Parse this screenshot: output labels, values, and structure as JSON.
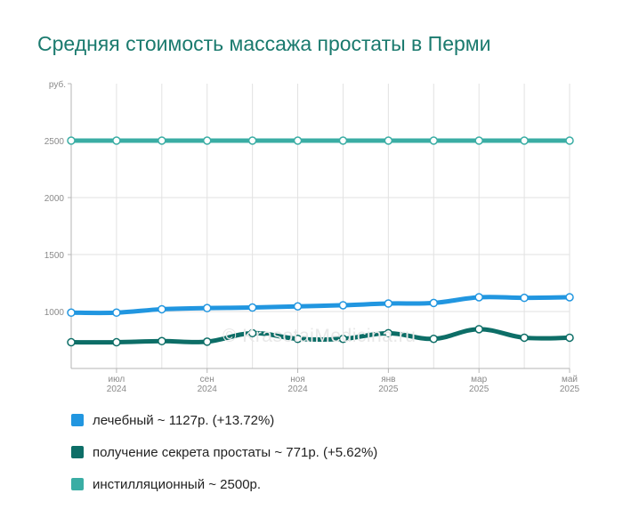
{
  "title": "Средняя стоимость массажа простаты в Перми",
  "watermark": "© KrasotaiMedicina.ru",
  "chart_data": {
    "type": "line",
    "y_unit": "руб.",
    "ylim": [
      0,
      2700
    ],
    "yticks": [
      {
        "value": 1000,
        "label": "1000"
      },
      {
        "value": 1500,
        "label": "1500"
      },
      {
        "value": 2000,
        "label": "2000"
      },
      {
        "value": 2500,
        "label": "2500"
      }
    ],
    "x_count": 12,
    "xticks": [
      {
        "index": 1,
        "label": [
          "июл",
          "2024"
        ]
      },
      {
        "index": 3,
        "label": [
          "сен",
          "2024"
        ]
      },
      {
        "index": 5,
        "label": [
          "ноя",
          "2024"
        ]
      },
      {
        "index": 7,
        "label": [
          "янв",
          "2025"
        ]
      },
      {
        "index": 9,
        "label": [
          "мар",
          "2025"
        ]
      },
      {
        "index": 11,
        "label": [
          "май",
          "2025"
        ]
      }
    ],
    "grid": true,
    "legend_position": "bottom-left",
    "series": [
      {
        "name": "лечебный",
        "color": "#2196e0",
        "values": [
          990,
          990,
          1020,
          1030,
          1035,
          1045,
          1055,
          1070,
          1075,
          1125,
          1120,
          1125
        ]
      },
      {
        "name": "получение секрета простаты",
        "color": "#0d6e67",
        "values": [
          730,
          730,
          740,
          735,
          810,
          760,
          760,
          810,
          760,
          845,
          770,
          770
        ]
      },
      {
        "name": "инстилляционный",
        "color": "#3aada4",
        "values": [
          2500,
          2500,
          2500,
          2500,
          2500,
          2500,
          2500,
          2500,
          2500,
          2500,
          2500,
          2500
        ]
      }
    ]
  },
  "legend": [
    {
      "text": "лечебный ~ 1127р. (+13.72%)",
      "color": "#2196e0"
    },
    {
      "text": "получение секрета простаты ~ 771р. (+5.62%)",
      "color": "#0d6e67"
    },
    {
      "text": "инстилляционный ~ 2500р.",
      "color": "#3aada4"
    }
  ]
}
